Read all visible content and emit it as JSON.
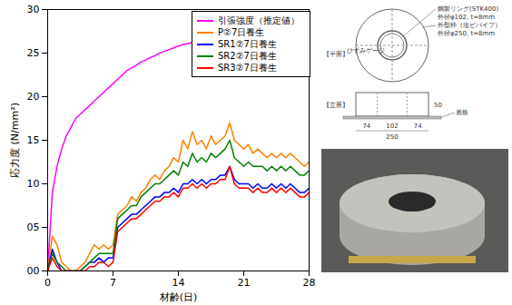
{
  "chart_data": {
    "type": "line",
    "x_label": "材齢(日)",
    "y_label": "応力度 (N/mm²)",
    "xlim": [
      0,
      28
    ],
    "xticks": [
      0,
      7,
      14,
      21,
      28
    ],
    "ylim": [
      0,
      30
    ],
    "yticks": [
      {
        "value": 0,
        "label": "00"
      },
      {
        "value": 5,
        "label": "05"
      },
      10,
      15,
      20,
      25,
      30
    ],
    "grid": false,
    "legend": "upper right",
    "x": [
      0,
      0.5,
      1,
      1.5,
      2,
      2.5,
      3,
      3.5,
      4,
      4.5,
      5,
      5.5,
      6,
      6.5,
      7,
      7.5,
      8,
      8.5,
      9,
      9.5,
      10,
      10.5,
      11,
      11.5,
      12,
      12.5,
      13,
      13.5,
      14,
      14.5,
      15,
      15.5,
      16,
      16.5,
      17,
      17.5,
      18,
      18.5,
      19,
      19.5,
      20,
      20.5,
      21,
      21.5,
      22,
      22.5,
      23,
      23.5,
      24,
      24.5,
      25,
      25.5,
      26,
      26.5,
      27,
      27.5,
      28
    ],
    "series": [
      {
        "name": "引張強度（推定値）",
        "color": "#ff00ff",
        "values": [
          0,
          9,
          12,
          14,
          15.5,
          16.5,
          17.5,
          18,
          18.5,
          19,
          19.5,
          20,
          20.5,
          21,
          21.5,
          22,
          22.5,
          23,
          23.3,
          23.6,
          24,
          24.2,
          24.5,
          24.7,
          25,
          25.2,
          25.4,
          25.6,
          25.8,
          26,
          26.1,
          26.2,
          null,
          null,
          null,
          null,
          null,
          null,
          null,
          null,
          null,
          null,
          null,
          null,
          null,
          null,
          null,
          null,
          null,
          null,
          null,
          null,
          null,
          null,
          null,
          null,
          null
        ]
      },
      {
        "name": "P②7日養生",
        "color": "#ff8000",
        "values": [
          0,
          4,
          3,
          1,
          0.5,
          0,
          0,
          0.5,
          1,
          2,
          3,
          2.5,
          3,
          2.5,
          3,
          6.5,
          7,
          7.5,
          8.5,
          8,
          9,
          9.5,
          10.5,
          11,
          10.5,
          11.5,
          12,
          13,
          12.5,
          15,
          14,
          16,
          14.5,
          15,
          14,
          15.5,
          14.5,
          15,
          15.5,
          17,
          15,
          14.5,
          14,
          14.5,
          13.5,
          14,
          13.5,
          13,
          13.5,
          13,
          13.5,
          13,
          13.5,
          13,
          12.5,
          12,
          12.5
        ]
      },
      {
        "name": "SR1②7日養生",
        "color": "#0000ff",
        "values": [
          0,
          2.5,
          1,
          0,
          0,
          0,
          0,
          0,
          0.5,
          1,
          1,
          1.5,
          1,
          1.5,
          1.5,
          5,
          5.5,
          6,
          6.5,
          6.5,
          7,
          7.5,
          8,
          8.5,
          8.5,
          9,
          9,
          9.5,
          9,
          10,
          10,
          10.5,
          10,
          10.5,
          10,
          10.5,
          10.5,
          11,
          11,
          12,
          10.5,
          10,
          10,
          10,
          9.5,
          10,
          9.5,
          9.5,
          10,
          9.5,
          10,
          9.5,
          10,
          9.5,
          9,
          9,
          9.5
        ]
      },
      {
        "name": "SR2②7日養生",
        "color": "#008000",
        "values": [
          0,
          2,
          1,
          0.5,
          0,
          0,
          0,
          0,
          0.5,
          1,
          1.5,
          2,
          2,
          2,
          2,
          6,
          6.5,
          7,
          7.5,
          7.5,
          8.5,
          9,
          9.5,
          10,
          10,
          10.5,
          11,
          11.5,
          11,
          12.5,
          12,
          13.5,
          12.5,
          13,
          12.5,
          13.5,
          13,
          13.5,
          14,
          15,
          13,
          12.5,
          12,
          12.5,
          12,
          12,
          12,
          11.5,
          12,
          11.5,
          12,
          11.5,
          12,
          11.5,
          11,
          11,
          11.5
        ]
      },
      {
        "name": "SR3②7日養生",
        "color": "#ff0000",
        "values": [
          0,
          1.5,
          0.5,
          0,
          0,
          0,
          0,
          0,
          0,
          0.5,
          0.5,
          1,
          1,
          0.5,
          1,
          4.5,
          5,
          5.5,
          6,
          6,
          6.5,
          7,
          7.5,
          8,
          8,
          8.5,
          8.5,
          9,
          8.5,
          9.5,
          9.5,
          10,
          9.5,
          10,
          9.5,
          10,
          10,
          10.5,
          10.5,
          12,
          10,
          9.5,
          9.5,
          9.5,
          9,
          9.5,
          9,
          9,
          9.5,
          9,
          9.5,
          9,
          9.5,
          9,
          8.5,
          8.5,
          9
        ]
      }
    ]
  },
  "figure": {
    "plan_label": "【平面】",
    "elevation_label": "【立面】",
    "callouts": [
      "鋼製リング(STK400)",
      "外径φ102, t=8mm",
      "外型枠（塩ビパイプ）",
      "外径φ250, t=8mm"
    ],
    "gauge_label": "ひずみゲージ",
    "base_label": "底板",
    "dimensions": [
      74,
      102,
      74
    ],
    "total_width": 250,
    "height": 50
  }
}
